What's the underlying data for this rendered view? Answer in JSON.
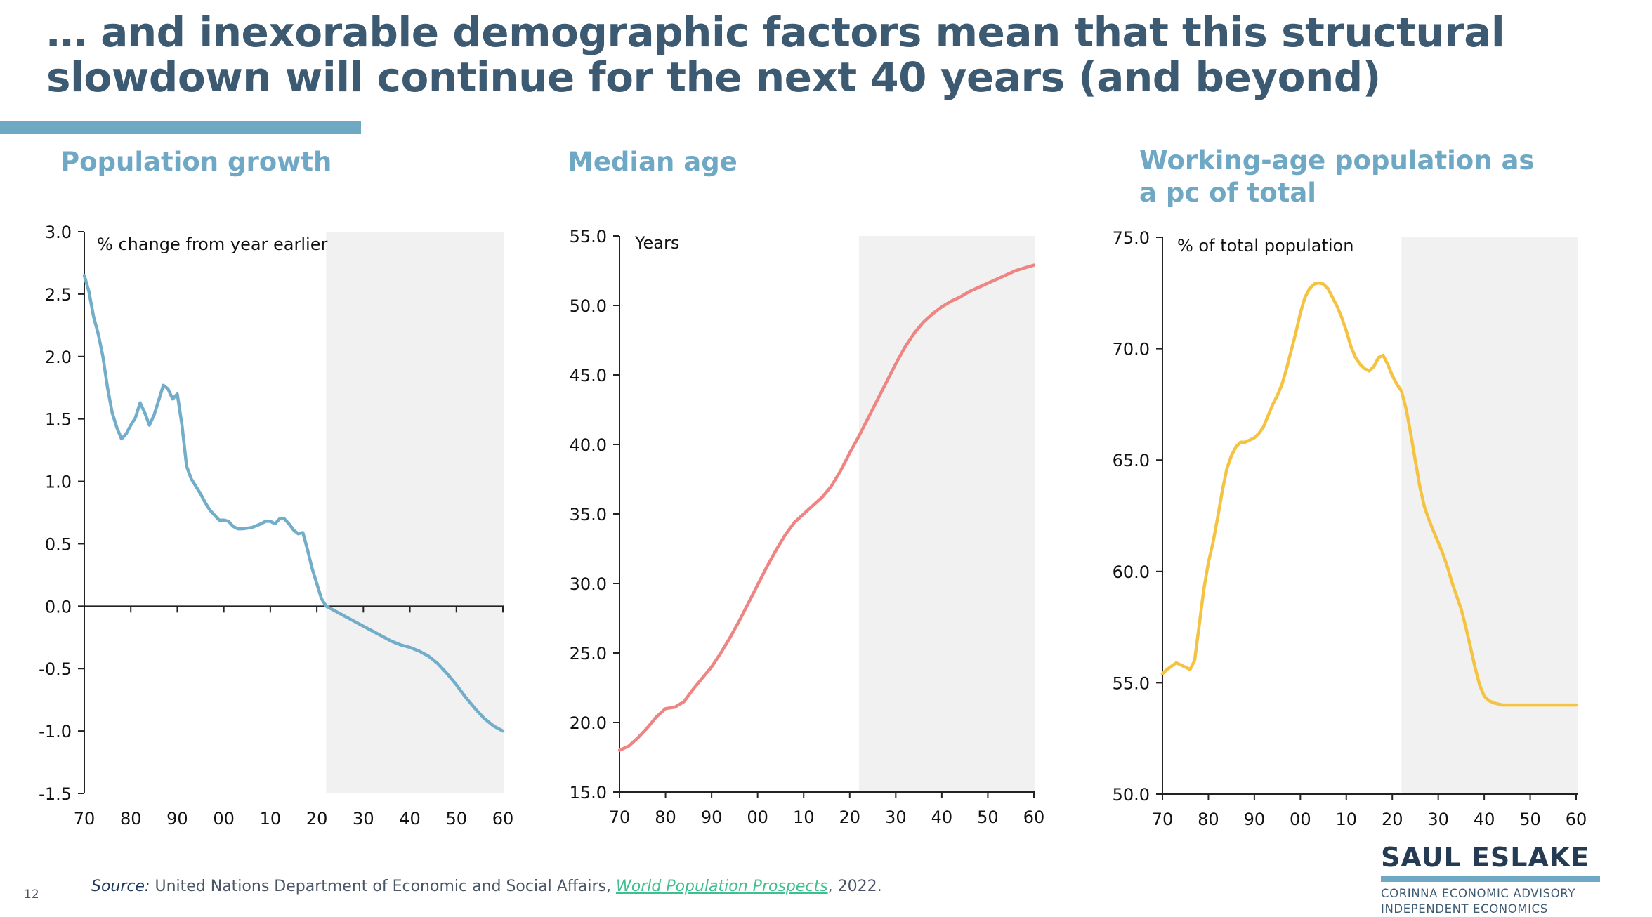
{
  "slide": {
    "title_line1": "… and inexorable demographic factors mean that this structural",
    "title_line2": "slowdown will continue for the next 40 years (and beyond)",
    "page_number": "12",
    "accent_color": "#6fa8c4",
    "title_color": "#3d5a73"
  },
  "footer": {
    "source_label": "Source:",
    "source_text": " United Nations Department of Economic and Social Affairs, ",
    "source_link": "World Population Prospects",
    "source_suffix": ", 2022."
  },
  "brand": {
    "name": "SAUL ESLAKE",
    "line1": "CORINNA ECONOMIC ADVISORY",
    "line2": "INDEPENDENT ECONOMICS"
  },
  "chart_data": [
    {
      "type": "line",
      "title": "Population growth",
      "ylabel": "% change from year earlier",
      "xlabel": "",
      "ylim": [
        -1.5,
        3.0
      ],
      "yticks": [
        "3.0",
        "2.5",
        "2.0",
        "1.5",
        "1.0",
        "0.5",
        "0.0",
        "-0.5",
        "-1.0",
        "-1.5"
      ],
      "ytick_values": [
        3.0,
        2.5,
        2.0,
        1.5,
        1.0,
        0.5,
        0.0,
        -0.5,
        -1.0,
        -1.5
      ],
      "xlim": [
        1970,
        2060
      ],
      "xticks": [
        "70",
        "80",
        "90",
        "00",
        "10",
        "20",
        "30",
        "40",
        "50",
        "60"
      ],
      "xtick_values": [
        1970,
        1980,
        1990,
        2000,
        2010,
        2020,
        2030,
        2040,
        2050,
        2060
      ],
      "x_axis_at": 0.0,
      "projection_shading_from": 2022,
      "grid": false,
      "series": [
        {
          "name": "Population growth",
          "color": "#72adc9",
          "x": [
            1970,
            1971,
            1972,
            1973,
            1974,
            1975,
            1976,
            1977,
            1978,
            1979,
            1980,
            1981,
            1982,
            1983,
            1984,
            1985,
            1986,
            1987,
            1988,
            1989,
            1990,
            1991,
            1992,
            1993,
            1994,
            1995,
            1996,
            1997,
            1998,
            1999,
            2000,
            2001,
            2002,
            2003,
            2004,
            2005,
            2006,
            2007,
            2008,
            2009,
            2010,
            2011,
            2012,
            2013,
            2014,
            2015,
            2016,
            2017,
            2018,
            2019,
            2020,
            2021,
            2022,
            2024,
            2026,
            2028,
            2030,
            2032,
            2034,
            2036,
            2038,
            2040,
            2042,
            2044,
            2046,
            2048,
            2050,
            2052,
            2054,
            2056,
            2058,
            2060
          ],
          "values": [
            2.65,
            2.52,
            2.32,
            2.18,
            2.0,
            1.75,
            1.55,
            1.43,
            1.34,
            1.38,
            1.45,
            1.51,
            1.63,
            1.55,
            1.45,
            1.53,
            1.65,
            1.77,
            1.74,
            1.66,
            1.7,
            1.45,
            1.12,
            1.02,
            0.96,
            0.9,
            0.83,
            0.77,
            0.73,
            0.69,
            0.69,
            0.68,
            0.64,
            0.62,
            0.62,
            0.625,
            0.63,
            0.645,
            0.66,
            0.68,
            0.68,
            0.66,
            0.7,
            0.7,
            0.66,
            0.61,
            0.58,
            0.59,
            0.45,
            0.3,
            0.18,
            0.06,
            0.0,
            -0.04,
            -0.08,
            -0.12,
            -0.16,
            -0.2,
            -0.24,
            -0.28,
            -0.31,
            -0.33,
            -0.36,
            -0.4,
            -0.46,
            -0.54,
            -0.63,
            -0.73,
            -0.82,
            -0.9,
            -0.96,
            -1.0
          ]
        }
      ]
    },
    {
      "type": "line",
      "title": "Median age",
      "ylabel": "Years",
      "xlabel": "",
      "ylim": [
        15.0,
        55.0
      ],
      "yticks": [
        "55.0",
        "50.0",
        "45.0",
        "40.0",
        "35.0",
        "30.0",
        "25.0",
        "20.0",
        "15.0"
      ],
      "ytick_values": [
        55,
        50,
        45,
        40,
        35,
        30,
        25,
        20,
        15
      ],
      "xlim": [
        1970,
        2060
      ],
      "xticks": [
        "70",
        "80",
        "90",
        "00",
        "10",
        "20",
        "30",
        "40",
        "50",
        "60"
      ],
      "xtick_values": [
        1970,
        1980,
        1990,
        2000,
        2010,
        2020,
        2030,
        2040,
        2050,
        2060
      ],
      "x_axis_at": 15.0,
      "projection_shading_from": 2022,
      "grid": false,
      "series": [
        {
          "name": "Median age",
          "color": "#ef8583",
          "x": [
            1970,
            1972,
            1974,
            1976,
            1978,
            1980,
            1982,
            1984,
            1986,
            1988,
            1990,
            1992,
            1994,
            1996,
            1998,
            2000,
            2002,
            2004,
            2006,
            2008,
            2010,
            2012,
            2014,
            2016,
            2018,
            2020,
            2022,
            2024,
            2026,
            2028,
            2030,
            2032,
            2034,
            2036,
            2038,
            2040,
            2042,
            2044,
            2046,
            2048,
            2050,
            2052,
            2054,
            2056,
            2058,
            2060
          ],
          "values": [
            18.0,
            18.3,
            18.9,
            19.6,
            20.4,
            21.0,
            21.1,
            21.5,
            22.4,
            23.2,
            24.0,
            25.0,
            26.1,
            27.3,
            28.6,
            29.9,
            31.2,
            32.4,
            33.5,
            34.4,
            35.0,
            35.6,
            36.2,
            37.0,
            38.1,
            39.4,
            40.6,
            41.9,
            43.2,
            44.5,
            45.8,
            47.0,
            48.0,
            48.8,
            49.4,
            49.9,
            50.3,
            50.6,
            51.0,
            51.3,
            51.6,
            51.9,
            52.2,
            52.5,
            52.7,
            52.9
          ]
        }
      ]
    },
    {
      "type": "line",
      "title": "Working-age population as a pc of total",
      "title_line1": "Working-age population as",
      "title_line2": "a pc of total",
      "ylabel": "% of total population",
      "xlabel": "",
      "ylim": [
        50.0,
        75.0
      ],
      "yticks": [
        "75.0",
        "70.0",
        "65.0",
        "60.0",
        "55.0",
        "50.0"
      ],
      "ytick_values": [
        75,
        70,
        65,
        60,
        55,
        50
      ],
      "xlim": [
        1970,
        2060
      ],
      "xticks": [
        "70",
        "80",
        "90",
        "00",
        "10",
        "20",
        "30",
        "40",
        "50",
        "60"
      ],
      "xtick_values": [
        1970,
        1980,
        1990,
        2000,
        2010,
        2020,
        2030,
        2040,
        2050,
        2060
      ],
      "x_axis_at": 50.0,
      "projection_shading_from": 2022,
      "grid": false,
      "series": [
        {
          "name": "Working-age population share",
          "color": "#f5c342",
          "x": [
            1970,
            1971,
            1973,
            1975,
            1976,
            1977,
            1978,
            1979,
            1980,
            1981,
            1982,
            1983,
            1984,
            1985,
            1986,
            1987,
            1988,
            1989,
            1990,
            1991,
            1992,
            1993,
            1994,
            1995,
            1996,
            1997,
            1998,
            1999,
            2000,
            2001,
            2002,
            2003,
            2004,
            2005,
            2006,
            2007,
            2008,
            2009,
            2010,
            2011,
            2012,
            2013,
            2014,
            2015,
            2016,
            2017,
            2018,
            2019,
            2020,
            2021,
            2022,
            2023,
            2024,
            2025,
            2026,
            2027,
            2028,
            2029,
            2030,
            2031,
            2032,
            2033,
            2034,
            2035,
            2036,
            2037,
            2038,
            2039,
            2040,
            2041,
            2042,
            2043,
            2044,
            2045,
            2046,
            2047,
            2048,
            2049,
            2050,
            2051,
            2052,
            2053,
            2054,
            2055,
            2056,
            2057,
            2058,
            2059,
            2060
          ],
          "values": [
            55.4,
            55.6,
            55.9,
            55.7,
            55.6,
            56.0,
            57.6,
            59.2,
            60.4,
            61.3,
            62.4,
            63.6,
            64.6,
            65.2,
            65.6,
            65.8,
            65.8,
            65.9,
            66.0,
            66.2,
            66.5,
            67.0,
            67.5,
            67.9,
            68.4,
            69.1,
            69.9,
            70.7,
            71.6,
            72.3,
            72.7,
            72.9,
            72.95,
            72.9,
            72.7,
            72.3,
            71.9,
            71.4,
            70.8,
            70.1,
            69.6,
            69.3,
            69.1,
            69.0,
            69.2,
            69.6,
            69.7,
            69.3,
            68.8,
            68.4,
            68.1,
            67.3,
            66.2,
            65.0,
            63.8,
            62.9,
            62.3,
            61.8,
            61.3,
            60.8,
            60.2,
            59.5,
            58.9,
            58.3,
            57.5,
            56.6,
            55.7,
            54.9,
            54.4,
            54.2,
            54.1,
            54.05,
            54.0,
            54.0,
            54.0,
            54.0,
            54.0,
            54.0,
            54.0,
            54.0,
            54.0,
            54.0,
            54.0,
            54.0,
            54.0,
            54.0,
            54.0,
            54.0,
            54.0
          ]
        }
      ]
    }
  ]
}
